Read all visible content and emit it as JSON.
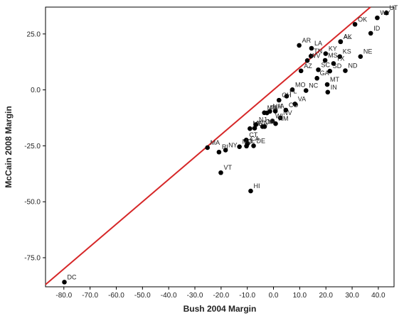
{
  "chart_data": {
    "type": "scatter",
    "title": "",
    "xlabel": "Bush 2004 Margin",
    "ylabel": "McCain 2008 Margin",
    "xlim": [
      -87,
      46
    ],
    "ylim": [
      -88,
      37
    ],
    "x_ticks": [
      -80,
      -70,
      -60,
      -50,
      -40,
      -30,
      -20,
      -10,
      0,
      10,
      20,
      30,
      40
    ],
    "x_tick_labels": [
      "-80.0",
      "-70.0",
      "-60.0",
      "-50.0",
      "-40.0",
      "-30.0",
      "-20.0",
      "-10.0",
      "0.0",
      "10.0",
      "20.0",
      "30.0",
      "40.0"
    ],
    "y_ticks": [
      25,
      0,
      -25,
      -50,
      -75
    ],
    "y_tick_labels": [
      "25.0",
      "0.0",
      "-25.0",
      "-50.0",
      "-75.0"
    ],
    "grid": false,
    "reference_line": {
      "slope": 1,
      "intercept": 0,
      "color": "#d62728"
    },
    "marker_color": "#000000",
    "points": [
      {
        "label": "UT",
        "x": 43.1,
        "y": 34.4
      },
      {
        "label": "OK",
        "x": 31.1,
        "y": 29.3
      },
      {
        "label": "ID",
        "x": 37.1,
        "y": 25.3
      },
      {
        "label": "NE",
        "x": 33.2,
        "y": 14.9
      },
      {
        "label": "WY",
        "x": 39.6,
        "y": 32.2
      },
      {
        "label": "KS",
        "x": 25.3,
        "y": 14.9
      },
      {
        "label": "AL",
        "x": 25.6,
        "y": 21.6
      },
      {
        "label": "AK",
        "x": 25.6,
        "y": 21.5
      },
      {
        "label": "TN",
        "x": 14.3,
        "y": 15.1
      },
      {
        "label": "KY",
        "x": 19.9,
        "y": 16.2
      },
      {
        "label": "SC",
        "x": 17.1,
        "y": 9.0
      },
      {
        "label": "LA",
        "x": 14.5,
        "y": 18.6
      },
      {
        "label": "AZ",
        "x": 10.5,
        "y": 8.5
      },
      {
        "label": "AR",
        "x": 9.8,
        "y": 19.9
      },
      {
        "label": "ND",
        "x": 27.4,
        "y": 8.6
      },
      {
        "label": "SD",
        "x": 21.5,
        "y": 8.4
      },
      {
        "label": "TX",
        "x": 22.9,
        "y": 11.8
      },
      {
        "label": "MS",
        "x": 19.7,
        "y": 13.2
      },
      {
        "label": "GA",
        "x": 16.6,
        "y": 5.2
      },
      {
        "label": "MT",
        "x": 20.5,
        "y": 2.4
      },
      {
        "label": "WV",
        "x": 12.9,
        "y": 13.1
      },
      {
        "label": "MO",
        "x": 7.2,
        "y": 0.1
      },
      {
        "label": "IN",
        "x": 20.7,
        "y": -1.0
      },
      {
        "label": "NC",
        "x": 12.4,
        "y": -0.3
      },
      {
        "label": "FL",
        "x": 5.0,
        "y": -2.8
      },
      {
        "label": "VA",
        "x": 8.2,
        "y": -6.3
      },
      {
        "label": "OH",
        "x": 2.1,
        "y": -4.6
      },
      {
        "label": "NV",
        "x": 2.6,
        "y": -12.5
      },
      {
        "label": "NH",
        "x": -1.4,
        "y": -9.6
      },
      {
        "label": "IA",
        "x": 0.7,
        "y": -9.5
      },
      {
        "label": "CO",
        "x": 4.7,
        "y": -9.0
      },
      {
        "label": "NM",
        "x": 0.8,
        "y": -15.1
      },
      {
        "label": "WI",
        "x": -0.4,
        "y": -13.9
      },
      {
        "label": "MN",
        "x": -3.5,
        "y": -10.2
      },
      {
        "label": "PA",
        "x": -2.5,
        "y": -10.3
      },
      {
        "label": "OR",
        "x": -4.2,
        "y": -16.4
      },
      {
        "label": "MI",
        "x": -3.4,
        "y": -16.4
      },
      {
        "label": "WA",
        "x": -7.2,
        "y": -17.1
      },
      {
        "label": "ME",
        "x": -9.0,
        "y": -17.3
      },
      {
        "label": "NJ",
        "x": -6.7,
        "y": -15.5
      },
      {
        "label": "CA",
        "x": -9.9,
        "y": -24.0
      },
      {
        "label": "CT",
        "x": -10.4,
        "y": -22.4
      },
      {
        "label": "IL",
        "x": -10.3,
        "y": -25.1
      },
      {
        "label": "DE",
        "x": -7.6,
        "y": -25.0
      },
      {
        "label": "MD",
        "x": -13.0,
        "y": -25.4
      },
      {
        "label": "NY",
        "x": -18.3,
        "y": -26.9
      },
      {
        "label": "RI",
        "x": -20.8,
        "y": -27.8
      },
      {
        "label": "VT",
        "x": -20.1,
        "y": -37.0
      },
      {
        "label": "MA",
        "x": -25.2,
        "y": -25.8
      },
      {
        "label": "HI",
        "x": -8.7,
        "y": -45.2
      },
      {
        "label": "DC",
        "x": -79.8,
        "y": -85.9
      }
    ]
  }
}
